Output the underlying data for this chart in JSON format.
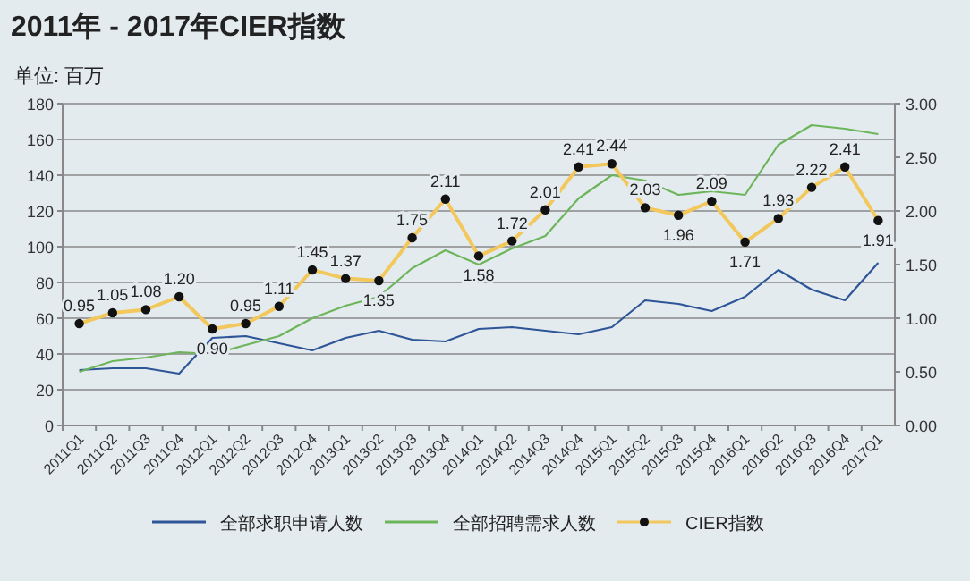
{
  "chart_data": {
    "type": "line",
    "title": "2011年 - 2017年CIER指数",
    "ylabel": "单位: 百万",
    "categories": [
      "2011Q1",
      "2011Q2",
      "2011Q3",
      "2011Q4",
      "2012Q1",
      "2012Q2",
      "2012Q3",
      "2012Q4",
      "2013Q1",
      "2013Q2",
      "2013Q3",
      "2013Q4",
      "2014Q1",
      "2014Q2",
      "2014Q3",
      "2014Q4",
      "2015Q1",
      "2015Q2",
      "2015Q3",
      "2015Q4",
      "2016Q1",
      "2016Q2",
      "2016Q3",
      "2016Q4",
      "2017Q1"
    ],
    "series": [
      {
        "name": "全部求职申请人数",
        "color": "#2e5597",
        "marker": "none",
        "values": [
          31,
          32,
          32,
          29,
          49,
          50,
          46,
          42,
          49,
          53,
          48,
          47,
          54,
          55,
          53,
          51,
          55,
          70,
          68,
          64,
          72,
          87,
          76,
          70,
          91
        ]
      },
      {
        "name": "全部招聘需求人数",
        "color": "#6db55a",
        "marker": "none",
        "values": [
          30,
          36,
          38,
          41,
          40,
          45,
          50,
          60,
          67,
          72,
          88,
          98,
          90,
          99,
          106,
          127,
          140,
          137,
          129,
          131,
          129,
          157,
          168,
          166,
          163
        ]
      },
      {
        "name": "CIER指数",
        "color": "#f2c75c",
        "marker": "circle",
        "axis": "y2",
        "value_labels": [
          "0.95",
          "1.05",
          "1.08",
          "1.20",
          "0.90",
          "0.95",
          "1.11",
          "1.45",
          "1.37",
          "1.35",
          "1.75",
          "2.11",
          "1.58",
          "1.72",
          "2.01",
          "2.41",
          "2.44",
          "2.03",
          "1.96",
          "2.09",
          "1.71",
          "1.93",
          "2.22",
          "2.41",
          "1.91"
        ],
        "values": [
          0.95,
          1.05,
          1.08,
          1.2,
          0.9,
          0.95,
          1.11,
          1.45,
          1.37,
          1.35,
          1.75,
          2.11,
          1.58,
          1.72,
          2.01,
          2.41,
          2.44,
          2.03,
          1.96,
          2.09,
          1.71,
          1.93,
          2.22,
          2.41,
          1.91
        ]
      }
    ],
    "ylim": [
      0,
      180
    ],
    "yticks": [
      0,
      20,
      40,
      60,
      80,
      100,
      120,
      140,
      160,
      180
    ],
    "y2lim": [
      0,
      3
    ],
    "y2ticks": [
      {
        "value": 0,
        "label": "0.00"
      },
      {
        "value": 0.5,
        "label": "0.50"
      },
      {
        "value": 1,
        "label": "1.00"
      },
      {
        "value": 1.5,
        "label": "1.50"
      },
      {
        "value": 2,
        "label": "2.00"
      },
      {
        "value": 2.5,
        "label": "2.50"
      },
      {
        "value": 3,
        "label": "3.00"
      }
    ],
    "grid": "y",
    "legend": "bottom",
    "line_style": "solid"
  }
}
